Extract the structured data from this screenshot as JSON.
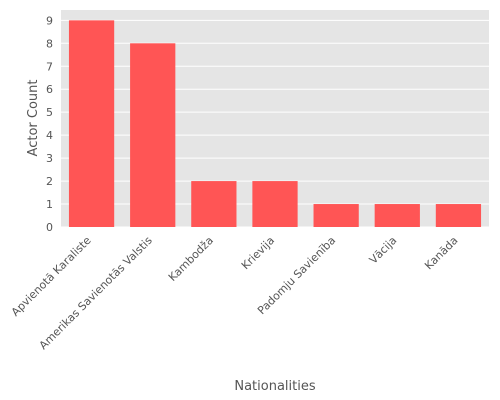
{
  "chart_data": {
    "type": "bar",
    "xlabel": "Nationalities",
    "ylabel": "Actor Count",
    "categories": [
      "Apvienotā Karaliste",
      "Amerikas Savienotās Valstis",
      "Kambodža",
      "Krievija",
      "Padomju Savienība",
      "Vācija",
      "Kanāda"
    ],
    "values": [
      9,
      8,
      2,
      2,
      1,
      1,
      1
    ],
    "ylim": [
      0,
      9.45
    ],
    "yticks": [
      0,
      1,
      2,
      3,
      4,
      5,
      6,
      7,
      8,
      9
    ],
    "grid": true,
    "bar_color": "#ff5555",
    "plot_background": "#e5e5e5",
    "grid_color": "#ffffff"
  }
}
